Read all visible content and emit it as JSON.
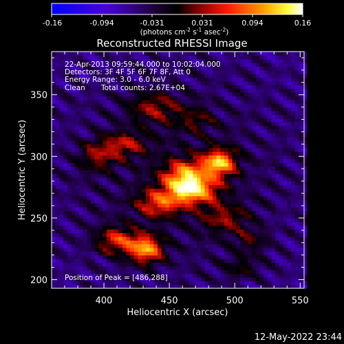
{
  "title": "Reconstructed RHESSI Image",
  "colorbar": {
    "ticks": [
      "-0.16",
      "-0.094",
      "-0.031",
      "0.031",
      "0.094",
      "0.16"
    ],
    "unit_prefix": "(photons cm",
    "unit_exp1": "-2",
    "unit_mid": " s",
    "unit_exp2": "-1",
    "unit_tail": " asec",
    "unit_exp3": "-2",
    "unit_close": ")"
  },
  "annotations": {
    "time": "22-Apr-2013 09:59:44.000 to 10:02:04.000",
    "detectors": "Detectors: 3F 4F 5F 6F 7F 8F, Att 0",
    "energy": "Energy Range: 3.0 - 6.0 keV",
    "clean": "Clean",
    "counts": "Total counts: 2.67E+04",
    "peak": "Position of Peak = [486,288]"
  },
  "timestamp": "12-May-2022 23:44",
  "chart_data": {
    "type": "heatmap",
    "title": "Reconstructed RHESSI Image",
    "xlabel": "Heliocentric X (arcsec)",
    "ylabel": "Heliocentric Y (arcsec)",
    "xlim": [
      360,
      553
    ],
    "ylim": [
      193,
      385
    ],
    "x_ticks": [
      400,
      450,
      500,
      550
    ],
    "y_ticks": [
      200,
      250,
      300,
      350
    ],
    "zlim": [
      -0.16,
      0.16
    ],
    "peak": [
      486,
      288
    ],
    "colormap": [
      "#0000ff",
      "#5a00c0",
      "#000000",
      "#8a0000",
      "#ff2000",
      "#ff9a00",
      "#ffff40",
      "#ffffff"
    ],
    "sources": [
      {
        "x": 488,
        "y": 295,
        "sx": 9,
        "sy": 8,
        "amp": 0.16
      },
      {
        "x": 462,
        "y": 285,
        "sx": 12,
        "sy": 9,
        "amp": 0.13
      },
      {
        "x": 468,
        "y": 272,
        "sx": 14,
        "sy": 8,
        "amp": 0.14
      },
      {
        "x": 442,
        "y": 262,
        "sx": 12,
        "sy": 8,
        "amp": 0.1
      },
      {
        "x": 432,
        "y": 225,
        "sx": 9,
        "sy": 8,
        "amp": 0.15
      },
      {
        "x": 410,
        "y": 232,
        "sx": 11,
        "sy": 8,
        "amp": 0.1
      },
      {
        "x": 415,
        "y": 310,
        "sx": 12,
        "sy": 7,
        "amp": 0.08
      },
      {
        "x": 395,
        "y": 300,
        "sx": 10,
        "sy": 8,
        "amp": 0.07
      },
      {
        "x": 438,
        "y": 340,
        "sx": 14,
        "sy": 9,
        "amp": 0.07
      },
      {
        "x": 492,
        "y": 250,
        "sx": 12,
        "sy": 8,
        "amp": 0.07
      },
      {
        "x": 512,
        "y": 232,
        "sx": 9,
        "sy": 7,
        "amp": 0.05
      },
      {
        "x": 505,
        "y": 210,
        "sx": 10,
        "sy": 6,
        "amp": 0.05
      },
      {
        "x": 470,
        "y": 330,
        "sx": 10,
        "sy": 7,
        "amp": 0.05
      }
    ]
  }
}
